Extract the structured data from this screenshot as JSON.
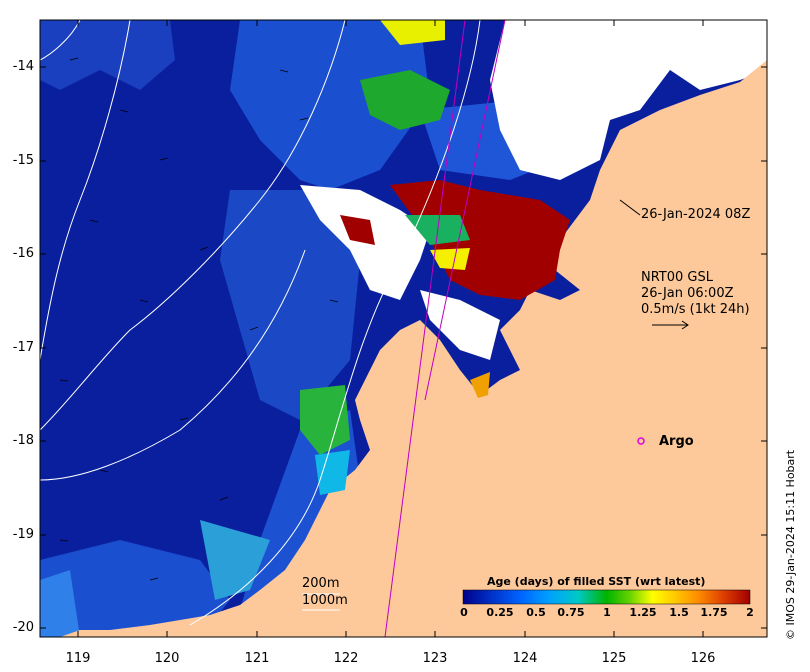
{
  "map": {
    "lat_labels": [
      "-14",
      "-15",
      "-16",
      "-17",
      "-18",
      "-19",
      "-20"
    ],
    "lon_labels": [
      "119",
      "120",
      "121",
      "122",
      "123",
      "124",
      "125",
      "126"
    ],
    "lat_range": [
      -20.1,
      -13.5
    ],
    "lon_range": [
      118.6,
      126.75
    ],
    "colors": {
      "land": "#fdc99a",
      "ocean_deep": "#0a1f9e",
      "ocean_mid": "#1a4fcf",
      "ocean_light": "#2f80e8",
      "cloud": "#ffffff",
      "old_data": "#a10000",
      "argo": "#e000e0"
    }
  },
  "annotations": {
    "time_label": "26-Jan-2024 08Z",
    "current_source": "NRT00 GSL",
    "current_time": "26-Jan 06:00Z",
    "current_scale": "0.5m/s (1kt 24h)",
    "argo_label": "Argo",
    "contour_200": "200m",
    "contour_1000": "1000m"
  },
  "colorbar": {
    "title": "Age (days) of filled SST (wrt latest)",
    "ticks": [
      "0",
      "0.25",
      "0.5",
      "0.75",
      "1",
      "1.25",
      "1.5",
      "1.75",
      "2"
    ],
    "range": [
      0,
      2
    ],
    "colors": [
      "#00008b",
      "#0032c8",
      "#0064ff",
      "#00a0ff",
      "#00c8c8",
      "#00b400",
      "#64d200",
      "#ffff00",
      "#ffc800",
      "#ff8c00",
      "#dc3c00",
      "#a00000"
    ]
  },
  "credit": "© IMOS 29-Jan-2024 15:11 Hobart"
}
